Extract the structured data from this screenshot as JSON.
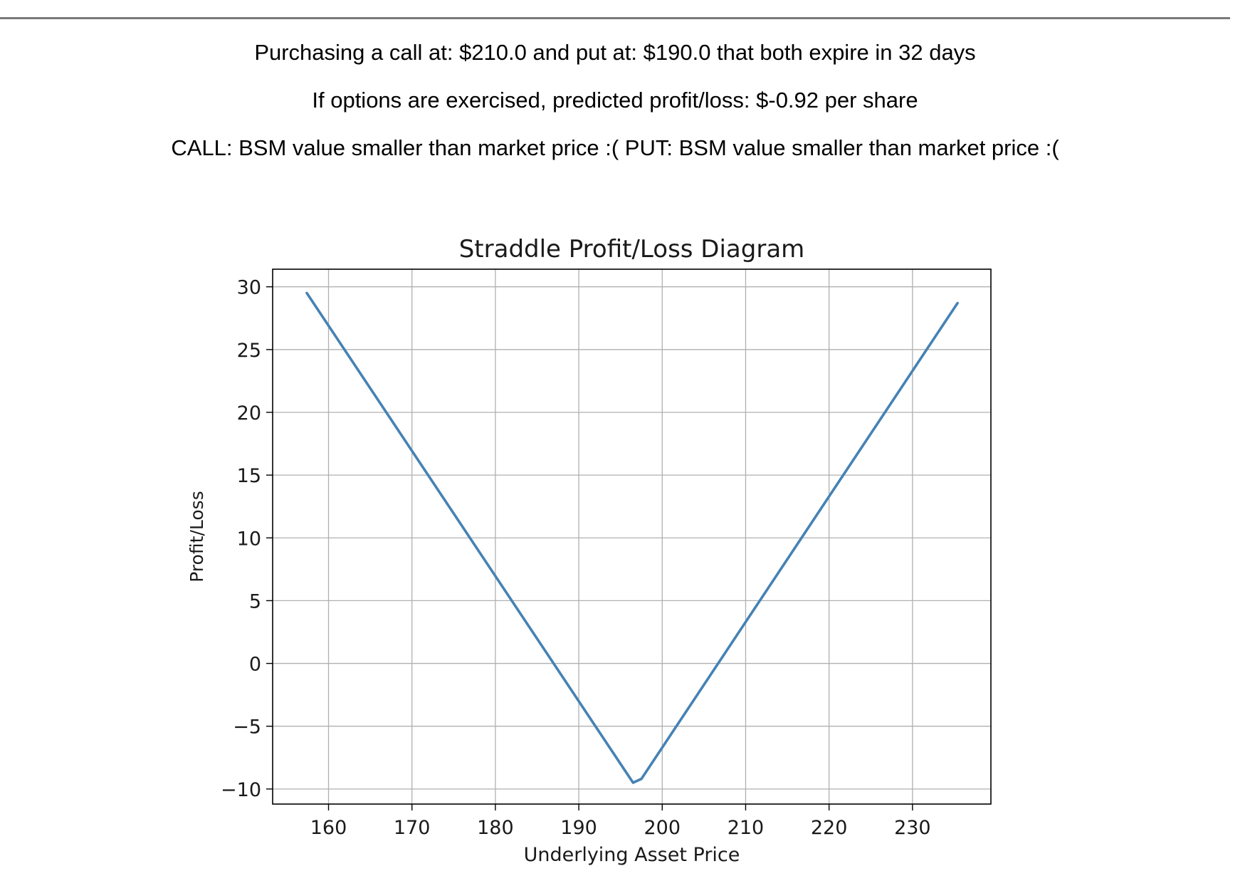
{
  "summary": {
    "line1": "Purchasing a call at: $210.0 and put at: $190.0 that both expire in 32 days",
    "line2": "If options are exercised, predicted profit/loss: $-0.92 per share",
    "line3": "CALL: BSM value smaller than market price :( PUT: BSM value smaller than market price :("
  },
  "chart_data": {
    "type": "line",
    "title": "Straddle Profit/Loss Diagram",
    "xlabel": "Underlying Asset Price",
    "ylabel": "Profit/Loss",
    "xlim": [
      153.3,
      239.4
    ],
    "ylim": [
      -11.2,
      31.4
    ],
    "xticks": [
      160,
      170,
      180,
      190,
      200,
      210,
      220,
      230
    ],
    "xtick_labels": [
      "160",
      "170",
      "180",
      "190",
      "200",
      "210",
      "220",
      "230"
    ],
    "yticks": [
      -10,
      -5,
      0,
      5,
      10,
      15,
      20,
      25,
      30
    ],
    "ytick_labels": [
      "−10",
      "−5",
      "0",
      "5",
      "10",
      "15",
      "20",
      "25",
      "30"
    ],
    "grid": true,
    "legend": "none",
    "series": [
      {
        "color": "#4682b4",
        "x": [
          157.4,
          196.5,
          197.5,
          235.4
        ],
        "y": [
          29.5,
          -9.5,
          -9.2,
          28.7
        ]
      }
    ]
  }
}
